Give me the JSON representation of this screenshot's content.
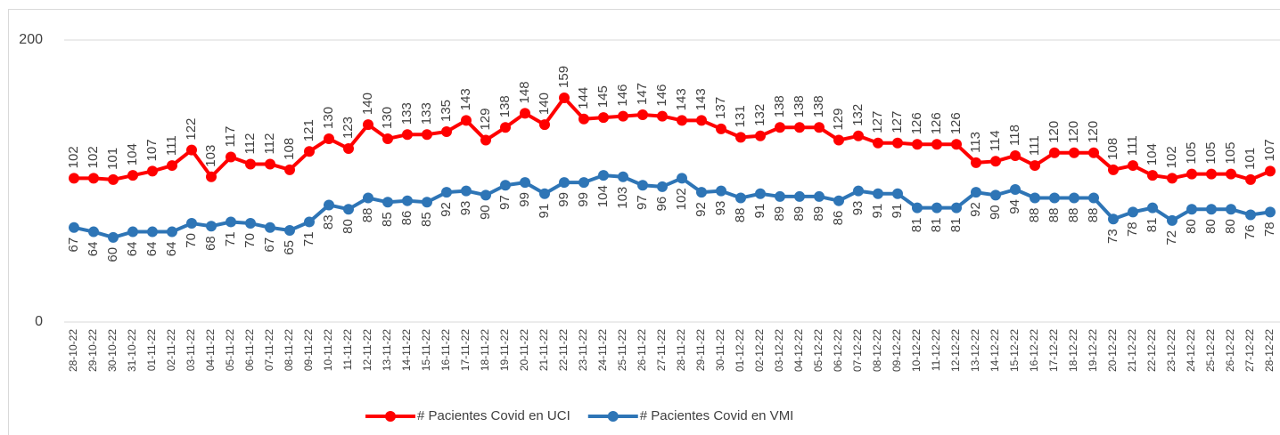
{
  "chart_data": {
    "type": "line",
    "categories": [
      "28-10-22",
      "29-10-22",
      "30-10-22",
      "31-10-22",
      "01-11-22",
      "02-11-22",
      "03-11-22",
      "04-11-22",
      "05-11-22",
      "06-11-22",
      "07-11-22",
      "08-11-22",
      "09-11-22",
      "10-11-22",
      "11-11-22",
      "12-11-22",
      "13-11-22",
      "14-11-22",
      "15-11-22",
      "16-11-22",
      "17-11-22",
      "18-11-22",
      "19-11-22",
      "20-11-22",
      "21-11-22",
      "22-11-22",
      "23-11-22",
      "24-11-22",
      "25-11-22",
      "26-11-22",
      "27-11-22",
      "28-11-22",
      "29-11-22",
      "30-11-22",
      "01-12-22",
      "02-12-22",
      "03-12-22",
      "04-12-22",
      "05-12-22",
      "06-12-22",
      "07-12-22",
      "08-12-22",
      "09-12-22",
      "10-12-22",
      "11-12-22",
      "12-12-22",
      "13-12-22",
      "14-12-22",
      "15-12-22",
      "16-12-22",
      "17-12-22",
      "18-12-22",
      "19-12-22",
      "20-12-22",
      "21-12-22",
      "22-12-22",
      "23-12-22",
      "24-12-22",
      "25-12-22",
      "26-12-22",
      "27-12-22",
      "28-12-22"
    ],
    "series": [
      {
        "name": "# Pacientes Covid en UCI",
        "color": "#ff0000",
        "values": [
          102,
          102,
          101,
          104,
          107,
          111,
          122,
          103,
          117,
          112,
          112,
          108,
          121,
          130,
          123,
          140,
          130,
          133,
          133,
          135,
          143,
          129,
          138,
          148,
          140,
          159,
          144,
          145,
          146,
          147,
          146,
          143,
          143,
          137,
          131,
          132,
          138,
          138,
          138,
          129,
          132,
          127,
          127,
          126,
          126,
          126,
          113,
          114,
          118,
          111,
          120,
          120,
          120,
          108,
          111,
          104,
          102,
          105,
          105,
          105,
          101,
          107
        ]
      },
      {
        "name": "# Pacientes Covid en VMI",
        "color": "#2e75b6",
        "values": [
          67,
          64,
          60,
          64,
          64,
          64,
          70,
          68,
          71,
          70,
          67,
          65,
          71,
          83,
          80,
          88,
          85,
          86,
          85,
          92,
          93,
          90,
          97,
          99,
          91,
          99,
          99,
          104,
          103,
          97,
          96,
          102,
          92,
          93,
          88,
          91,
          89,
          89,
          89,
          86,
          93,
          91,
          91,
          81,
          81,
          81,
          92,
          90,
          94,
          88,
          88,
          88,
          88,
          73,
          78,
          81,
          72,
          80,
          80,
          80,
          76,
          78
        ]
      }
    ],
    "ylim": [
      0,
      200
    ],
    "yticks": [
      0,
      200
    ],
    "grid": true
  }
}
